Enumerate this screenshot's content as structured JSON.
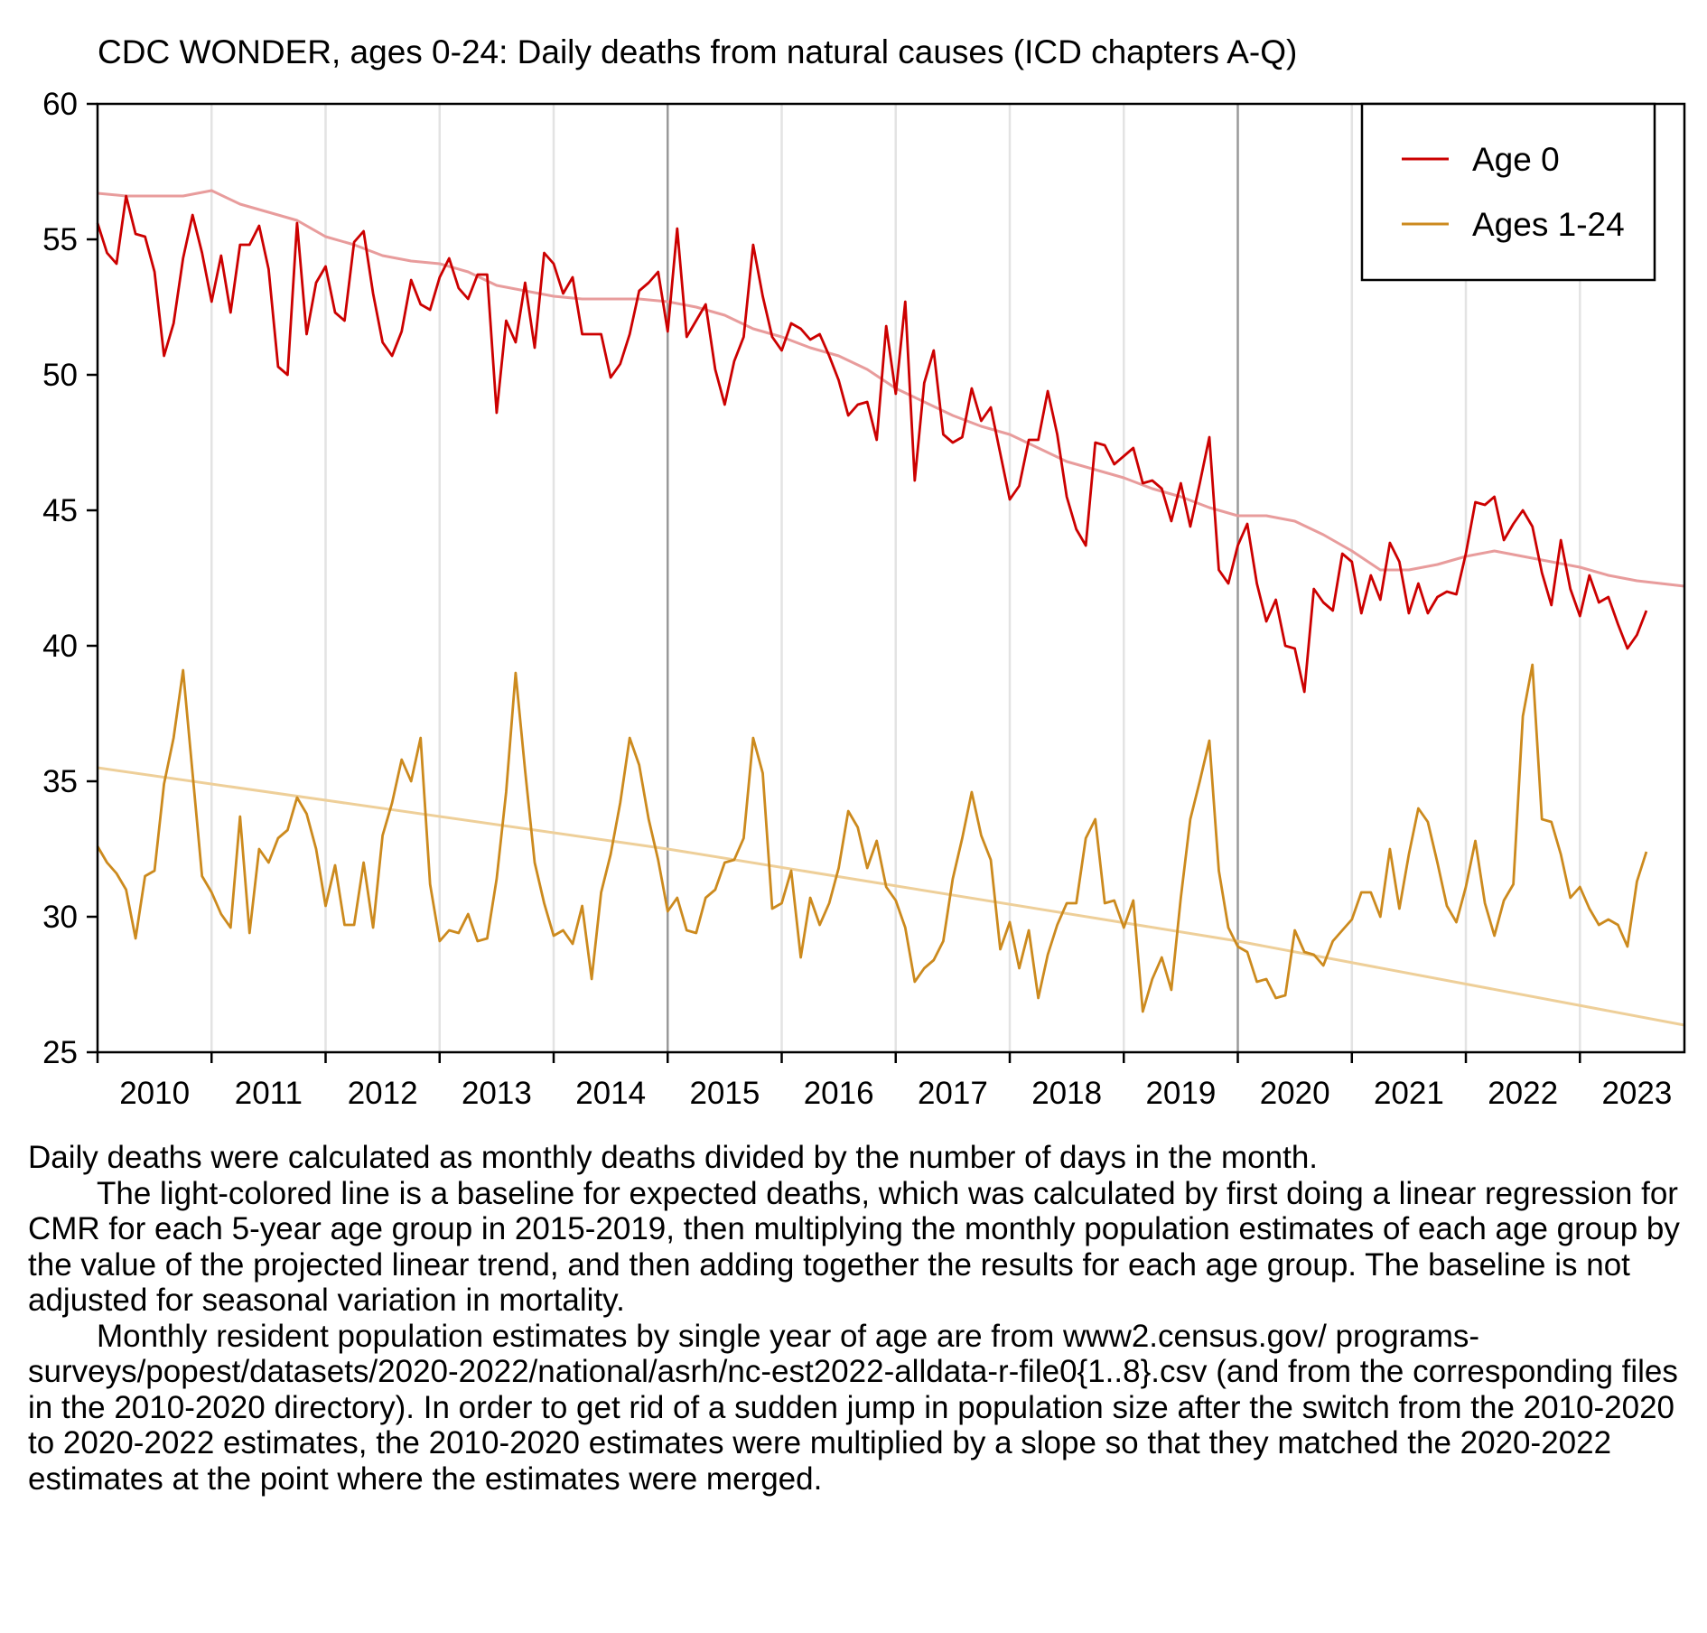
{
  "chart_data": {
    "type": "line",
    "title": "CDC WONDER, ages 0-24: Daily deaths from natural causes (ICD chapters A-Q)",
    "xlabel": "",
    "ylabel": "",
    "x_tick_labels": [
      "2010",
      "2011",
      "2012",
      "2013",
      "2014",
      "2015",
      "2016",
      "2017",
      "2018",
      "2019",
      "2020",
      "2021",
      "2022",
      "2023"
    ],
    "y_ticks": [
      25,
      30,
      35,
      40,
      45,
      50,
      55,
      60
    ],
    "ylim": [
      25,
      60
    ],
    "x_start": "2010-01",
    "x_end": "2023-12",
    "grid": "vertical lines at year boundaries; darker lines at 2015 and 2020",
    "legend_position": "top-right",
    "series": [
      {
        "name": "Age 0",
        "color": "#cc0000",
        "values": [
          55.6,
          54.5,
          54.1,
          56.6,
          55.2,
          55.1,
          53.8,
          50.7,
          51.9,
          54.3,
          55.9,
          54.5,
          52.7,
          54.4,
          52.3,
          54.8,
          54.8,
          55.5,
          53.9,
          50.3,
          50.0,
          55.6,
          51.5,
          53.4,
          54.0,
          52.3,
          52.0,
          54.9,
          55.3,
          53.0,
          51.2,
          50.7,
          51.6,
          53.5,
          52.6,
          52.4,
          53.6,
          54.3,
          53.2,
          52.8,
          53.7,
          53.7,
          48.6,
          52.0,
          51.2,
          53.4,
          51.0,
          54.5,
          54.1,
          53.0,
          53.6,
          51.5,
          51.5,
          51.5,
          49.9,
          50.4,
          51.5,
          53.1,
          53.4,
          53.8,
          51.6,
          55.4,
          51.4,
          52.0,
          52.6,
          50.2,
          48.9,
          50.5,
          51.4,
          54.8,
          52.9,
          51.4,
          50.9,
          51.9,
          51.7,
          51.3,
          51.5,
          50.7,
          49.8,
          48.5,
          48.9,
          49.0,
          47.6,
          51.8,
          49.3,
          52.7,
          46.1,
          49.7,
          50.9,
          47.8,
          47.5,
          47.7,
          49.5,
          48.3,
          48.8,
          47.1,
          45.4,
          45.9,
          47.6,
          47.6,
          49.4,
          47.8,
          45.5,
          44.3,
          43.7,
          47.5,
          47.4,
          46.7,
          47.0,
          47.3,
          46.0,
          46.1,
          45.8,
          44.6,
          46.0,
          44.4,
          46.0,
          47.7,
          42.8,
          42.3,
          43.7,
          44.5,
          42.3,
          40.9,
          41.7,
          40.0,
          39.9,
          38.3,
          42.1,
          41.6,
          41.3,
          43.4,
          43.1,
          41.2,
          42.6,
          41.7,
          43.8,
          43.1,
          41.2,
          42.3,
          41.2,
          41.8,
          42.0,
          41.9,
          43.4,
          45.3,
          45.2,
          45.5,
          43.9,
          44.5,
          45.0,
          44.4,
          42.7,
          41.5,
          43.9,
          42.1,
          41.1,
          42.6,
          41.6,
          41.8,
          40.8,
          39.9,
          40.4,
          41.3
        ]
      },
      {
        "name": "Ages 1-24",
        "color": "#cc8a1e",
        "values": [
          32.6,
          32.0,
          31.6,
          31.0,
          29.2,
          31.5,
          31.7,
          34.9,
          36.6,
          39.1,
          35.3,
          31.5,
          30.9,
          30.1,
          29.6,
          33.7,
          29.4,
          32.5,
          32.0,
          32.9,
          33.2,
          34.4,
          33.8,
          32.5,
          30.4,
          31.9,
          29.7,
          29.7,
          32.0,
          29.6,
          33.0,
          34.2,
          35.8,
          35.0,
          36.6,
          31.2,
          29.1,
          29.5,
          29.4,
          30.1,
          29.1,
          29.2,
          31.4,
          34.6,
          39.0,
          35.4,
          32.0,
          30.5,
          29.3,
          29.5,
          29.0,
          30.4,
          27.7,
          30.9,
          32.3,
          34.2,
          36.6,
          35.6,
          33.6,
          32.1,
          30.2,
          30.7,
          29.5,
          29.4,
          30.7,
          31.0,
          32.0,
          32.1,
          32.9,
          36.6,
          35.3,
          30.3,
          30.5,
          31.7,
          28.5,
          30.7,
          29.7,
          30.5,
          31.8,
          33.9,
          33.3,
          31.8,
          32.8,
          31.1,
          30.6,
          29.6,
          27.6,
          28.1,
          28.4,
          29.1,
          31.4,
          32.9,
          34.6,
          33.0,
          32.1,
          28.8,
          29.8,
          28.1,
          29.5,
          27.0,
          28.6,
          29.7,
          30.5,
          30.5,
          32.9,
          33.6,
          30.5,
          30.6,
          29.6,
          30.6,
          26.5,
          27.7,
          28.5,
          27.3,
          30.7,
          33.6,
          35.0,
          36.5,
          31.7,
          29.6,
          28.9,
          28.7,
          27.6,
          27.7,
          27.0,
          27.1,
          29.5,
          28.7,
          28.6,
          28.2,
          29.1,
          29.5,
          29.9,
          30.9,
          30.9,
          30.0,
          32.5,
          30.3,
          32.3,
          34.0,
          33.5,
          32.0,
          30.4,
          29.8,
          31.1,
          32.8,
          30.5,
          29.3,
          30.6,
          31.2,
          37.4,
          39.3,
          33.6,
          33.5,
          32.3,
          30.7,
          31.1,
          30.3,
          29.7,
          29.9,
          29.7,
          28.9,
          31.3,
          32.4
        ]
      },
      {
        "name": "Age 0 baseline",
        "color": "#e89c9c",
        "x_points": [
          "2010-01",
          "2010-04",
          "2010-07",
          "2010-10",
          "2011-01",
          "2011-04",
          "2011-07",
          "2011-10",
          "2012-01",
          "2012-04",
          "2012-07",
          "2012-10",
          "2013-01",
          "2013-04",
          "2013-07",
          "2013-10",
          "2014-01",
          "2014-04",
          "2014-07",
          "2014-10",
          "2015-01",
          "2015-04",
          "2015-07",
          "2015-10",
          "2016-01",
          "2016-04",
          "2016-07",
          "2016-10",
          "2017-01",
          "2017-04",
          "2017-07",
          "2017-10",
          "2018-01",
          "2018-04",
          "2018-07",
          "2018-10",
          "2019-01",
          "2019-04",
          "2019-07",
          "2019-10",
          "2020-01",
          "2020-04",
          "2020-07",
          "2020-10",
          "2021-01",
          "2021-04",
          "2021-07",
          "2021-10",
          "2022-01",
          "2022-04",
          "2022-07",
          "2022-10",
          "2023-01",
          "2023-04",
          "2023-07",
          "2023-12"
        ],
        "values": [
          56.7,
          56.6,
          56.6,
          56.6,
          56.8,
          56.3,
          56.0,
          55.7,
          55.1,
          54.8,
          54.4,
          54.2,
          54.1,
          53.8,
          53.3,
          53.1,
          52.9,
          52.8,
          52.8,
          52.8,
          52.7,
          52.5,
          52.2,
          51.7,
          51.4,
          51.0,
          50.7,
          50.2,
          49.5,
          49.0,
          48.5,
          48.1,
          47.8,
          47.3,
          46.8,
          46.5,
          46.2,
          45.8,
          45.5,
          45.1,
          44.8,
          44.8,
          44.6,
          44.1,
          43.5,
          42.8,
          42.8,
          43.0,
          43.3,
          43.5,
          43.3,
          43.1,
          42.9,
          42.6,
          42.4,
          42.2
        ]
      },
      {
        "name": "Ages 1-24 baseline",
        "color": "#eecf99",
        "x_points": [
          "2010-01",
          "2015-01",
          "2020-01",
          "2023-12"
        ],
        "values": [
          35.5,
          32.5,
          29.1,
          26.0
        ]
      }
    ]
  },
  "caption": {
    "p1": "Daily deaths were calculated as monthly deaths divided by the number of days in the month.",
    "p2": "The light-colored line is a baseline for expected deaths, which was calculated by first doing a linear regression for CMR for each 5-year age group in 2015-2019, then multiplying the monthly population estimates of each age group by the value of the projected linear trend, and then adding together the results for each age group. The baseline is not adjusted for seasonal variation in mortality.",
    "p3": "Monthly resident population estimates by single year of age are from www2.census.gov/ programs-surveys/popest/datasets/2020-2022/national/asrh/nc-est2022-alldata-r-file0{1..8}.csv (and from the corresponding files in the 2010-2020 directory). In order to get rid of a sudden jump in population size after the switch from the 2010-2020 to 2020-2022 estimates, the 2010-2020 estimates were multiplied by a slope so that they matched the 2020-2022 estimates at the point where the estimates were merged."
  }
}
